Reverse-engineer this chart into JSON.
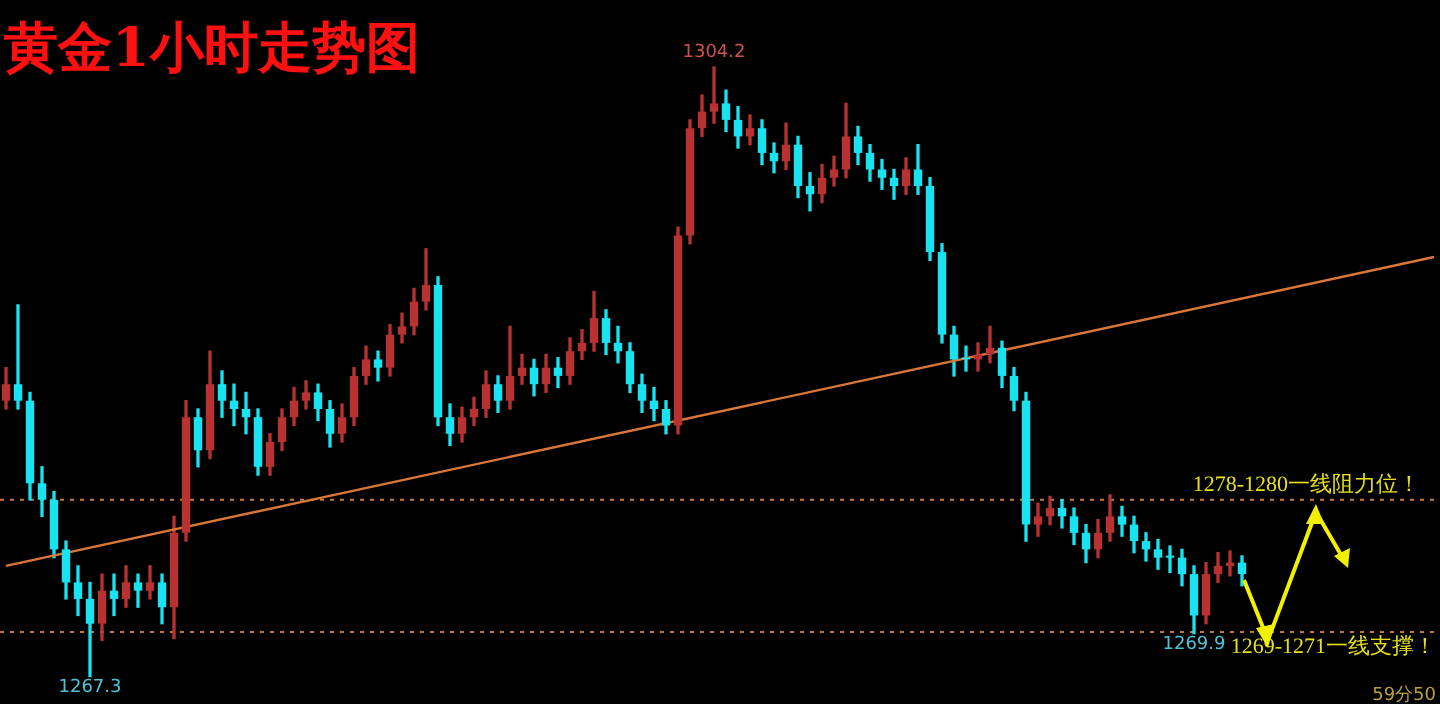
{
  "chart_data": {
    "type": "candlestick",
    "title": "黄金1小时走势图",
    "categories": [
      null,
      null,
      null,
      null,
      null,
      null,
      null,
      null,
      null,
      null,
      null,
      null,
      null,
      null,
      null,
      null,
      null,
      null,
      null,
      null,
      null,
      null,
      null,
      null,
      null,
      null,
      null,
      null,
      null,
      null,
      null,
      null,
      null,
      null,
      null,
      null,
      null,
      null,
      null,
      null,
      null,
      null,
      null,
      null,
      null,
      null,
      null,
      null,
      null,
      null,
      null,
      null,
      null,
      null,
      null,
      null,
      null,
      null,
      null,
      null,
      null,
      null,
      null,
      null,
      null,
      null,
      null,
      null,
      null,
      null,
      null,
      null,
      null,
      null,
      null,
      null,
      null,
      null,
      null,
      null,
      null,
      null,
      null,
      null,
      null,
      null,
      null,
      null,
      null,
      null,
      null,
      null,
      null,
      null,
      null,
      null,
      null,
      null,
      null,
      null,
      null,
      null,
      null,
      null,
      null,
      null,
      null,
      null,
      null,
      null,
      null,
      null,
      null,
      null,
      null,
      null,
      null,
      null,
      null,
      null
    ],
    "ohlc": [
      [
        1284,
        1286,
        1283.5,
        1285
      ],
      [
        1285,
        1289.8,
        1283.5,
        1284
      ],
      [
        1284,
        1284.5,
        1278,
        1279
      ],
      [
        1279,
        1280,
        1277,
        1278
      ],
      [
        1278,
        1278.5,
        1274.5,
        1275
      ],
      [
        1275,
        1275.5,
        1272,
        1273
      ],
      [
        1273,
        1274,
        1271,
        1272
      ],
      [
        1272,
        1273,
        1267.3,
        1270.5
      ],
      [
        1270.5,
        1273.5,
        1269.5,
        1272.5
      ],
      [
        1272.5,
        1273.5,
        1271,
        1272
      ],
      [
        1272,
        1274,
        1271.5,
        1273
      ],
      [
        1273,
        1273.5,
        1271.5,
        1272.5
      ],
      [
        1272.5,
        1274,
        1272,
        1273
      ],
      [
        1273,
        1273.5,
        1270.5,
        1271.5
      ],
      [
        1271.5,
        1277,
        1269.6,
        1276
      ],
      [
        1276,
        1284,
        1275.5,
        1283
      ],
      [
        1283,
        1283.5,
        1280,
        1281
      ],
      [
        1281,
        1287,
        1280.5,
        1285
      ],
      [
        1285,
        1285.8,
        1283,
        1284
      ],
      [
        1284,
        1285,
        1282.5,
        1283.5
      ],
      [
        1283.5,
        1284.5,
        1282,
        1283
      ],
      [
        1283,
        1283.5,
        1279.5,
        1280
      ],
      [
        1280,
        1282,
        1279.5,
        1281.5
      ],
      [
        1281.5,
        1283.5,
        1281,
        1283
      ],
      [
        1283,
        1284.8,
        1282.5,
        1284
      ],
      [
        1284,
        1285.2,
        1283.5,
        1284.5
      ],
      [
        1284.5,
        1285,
        1282.8,
        1283.5
      ],
      [
        1283.5,
        1284,
        1281.2,
        1282
      ],
      [
        1282,
        1283.8,
        1281.5,
        1283
      ],
      [
        1283,
        1286,
        1282.5,
        1285.5
      ],
      [
        1285.5,
        1287.3,
        1285,
        1286.5
      ],
      [
        1286.5,
        1287,
        1285.2,
        1286
      ],
      [
        1286,
        1288.6,
        1285.5,
        1288
      ],
      [
        1288,
        1289.3,
        1287.5,
        1288.5
      ],
      [
        1288.5,
        1290.8,
        1288,
        1290
      ],
      [
        1290,
        1293.2,
        1289.5,
        1291
      ],
      [
        1291,
        1291.5,
        1282.5,
        1283
      ],
      [
        1283,
        1283.8,
        1281.3,
        1282
      ],
      [
        1282,
        1283.6,
        1281.5,
        1283
      ],
      [
        1283,
        1284.2,
        1282.5,
        1283.5
      ],
      [
        1283.5,
        1285.8,
        1283,
        1285
      ],
      [
        1285,
        1285.5,
        1283.3,
        1284
      ],
      [
        1284,
        1288.5,
        1283.5,
        1285.5
      ],
      [
        1285.5,
        1286.8,
        1285,
        1286
      ],
      [
        1286,
        1286.5,
        1284.3,
        1285
      ],
      [
        1285,
        1286.8,
        1284.5,
        1286
      ],
      [
        1286,
        1286.6,
        1284.8,
        1285.5
      ],
      [
        1285.5,
        1287.8,
        1285,
        1287
      ],
      [
        1287,
        1288.3,
        1286.5,
        1287.5
      ],
      [
        1287.5,
        1290.6,
        1287,
        1289
      ],
      [
        1289,
        1289.5,
        1286.8,
        1287.5
      ],
      [
        1287.5,
        1288.5,
        1286.3,
        1287
      ],
      [
        1287,
        1287.5,
        1284.5,
        1285
      ],
      [
        1285,
        1285.6,
        1283.3,
        1284
      ],
      [
        1284,
        1284.8,
        1282.8,
        1283.5
      ],
      [
        1283.5,
        1284,
        1282,
        1282.5
      ],
      [
        1282.5,
        1294.5,
        1282,
        1294
      ],
      [
        1294,
        1301,
        1293.5,
        1300.5
      ],
      [
        1300.5,
        1302.5,
        1300,
        1301.5
      ],
      [
        1301.5,
        1304.2,
        1300.8,
        1302
      ],
      [
        1302,
        1302.8,
        1300.3,
        1301
      ],
      [
        1301,
        1301.8,
        1299.3,
        1300
      ],
      [
        1300,
        1301.3,
        1299.5,
        1300.5
      ],
      [
        1300.5,
        1301,
        1298.3,
        1299
      ],
      [
        1299,
        1299.6,
        1297.8,
        1298.5
      ],
      [
        1298.5,
        1300.8,
        1298,
        1299.5
      ],
      [
        1299.5,
        1300,
        1296.3,
        1297
      ],
      [
        1297,
        1297.8,
        1295.5,
        1296.5
      ],
      [
        1296.5,
        1298.3,
        1296,
        1297.5
      ],
      [
        1297.5,
        1298.8,
        1297,
        1298
      ],
      [
        1298,
        1302,
        1297.5,
        1300
      ],
      [
        1300,
        1300.6,
        1298.3,
        1299
      ],
      [
        1299,
        1299.5,
        1297.3,
        1298
      ],
      [
        1298,
        1298.6,
        1296.8,
        1297.5
      ],
      [
        1297.5,
        1298,
        1296.2,
        1297
      ],
      [
        1297,
        1298.7,
        1296.5,
        1298
      ],
      [
        1298,
        1299.5,
        1296.5,
        1297
      ],
      [
        1297,
        1297.5,
        1292.5,
        1293
      ],
      [
        1293,
        1293.5,
        1287.5,
        1288
      ],
      [
        1288,
        1288.5,
        1285.5,
        1286.5
      ],
      [
        1286.5,
        1287.3,
        1285.8,
        1286.5
      ],
      [
        1286.5,
        1287.5,
        1285.8,
        1286.8
      ],
      [
        1286.8,
        1288.5,
        1286.3,
        1287.2
      ],
      [
        1287.2,
        1287.6,
        1284.8,
        1285.5
      ],
      [
        1285.5,
        1286,
        1283.4,
        1284
      ],
      [
        1284,
        1284.5,
        1275.5,
        1276.5
      ],
      [
        1276.5,
        1277.8,
        1275.8,
        1277
      ],
      [
        1277,
        1278.2,
        1276.5,
        1277.5
      ],
      [
        1277.5,
        1278,
        1276.3,
        1277
      ],
      [
        1277,
        1277.5,
        1275.3,
        1276
      ],
      [
        1276,
        1276.5,
        1274.2,
        1275
      ],
      [
        1275,
        1276.8,
        1274.5,
        1276
      ],
      [
        1276,
        1278.3,
        1275.5,
        1277
      ],
      [
        1277,
        1277.6,
        1275.8,
        1276.5
      ],
      [
        1276.5,
        1277,
        1274.8,
        1275.5
      ],
      [
        1275.5,
        1276,
        1274.3,
        1275
      ],
      [
        1275,
        1275.6,
        1273.8,
        1274.5
      ],
      [
        1274.5,
        1275.2,
        1273.6,
        1274.5
      ],
      [
        1274.5,
        1275,
        1272.8,
        1273.5
      ],
      [
        1273.5,
        1274,
        1269.9,
        1271
      ],
      [
        1271,
        1274.2,
        1270.5,
        1273.5
      ],
      [
        1273.5,
        1274.8,
        1273,
        1274
      ],
      [
        1274,
        1274.9,
        1273.4,
        1274.2
      ],
      [
        1274.2,
        1274.6,
        1272.8,
        1273.5
      ],
      null,
      null,
      null,
      null,
      null,
      null,
      null,
      null,
      null,
      null,
      null,
      null,
      null,
      null,
      null,
      null
    ],
    "colors": [
      "#b83232",
      "#19e3f0",
      "#19e3f0",
      "#19e3f0",
      "#19e3f0",
      "#19e3f0",
      "#19e3f0",
      "#19e3f0",
      "#b83232",
      "#19e3f0",
      "#b83232",
      "#19e3f0",
      "#b83232",
      "#19e3f0",
      "#b83232",
      "#b83232",
      "#19e3f0",
      "#b83232",
      "#19e3f0",
      "#19e3f0",
      "#19e3f0",
      "#19e3f0",
      "#b83232",
      "#b83232",
      "#b83232",
      "#b83232",
      "#19e3f0",
      "#19e3f0",
      "#b83232",
      "#b83232",
      "#b83232",
      "#19e3f0",
      "#b83232",
      "#b83232",
      "#b83232",
      "#b83232",
      "#19e3f0",
      "#19e3f0",
      "#b83232",
      "#b83232",
      "#b83232",
      "#19e3f0",
      "#b83232",
      "#b83232",
      "#19e3f0",
      "#b83232",
      "#19e3f0",
      "#b83232",
      "#b83232",
      "#b83232",
      "#19e3f0",
      "#19e3f0",
      "#19e3f0",
      "#19e3f0",
      "#19e3f0",
      "#19e3f0",
      "#b83232",
      "#b83232",
      "#b83232",
      "#b83232",
      "#19e3f0",
      "#19e3f0",
      "#b83232",
      "#19e3f0",
      "#19e3f0",
      "#b83232",
      "#19e3f0",
      "#19e3f0",
      "#b83232",
      "#b83232",
      "#b83232",
      "#19e3f0",
      "#19e3f0",
      "#19e3f0",
      "#19e3f0",
      "#b83232",
      "#19e3f0",
      "#19e3f0",
      "#19e3f0",
      "#19e3f0",
      "#19e3f0",
      "#b83232",
      "#b83232",
      "#19e3f0",
      "#19e3f0",
      "#19e3f0",
      "#b83232",
      "#b83232",
      "#19e3f0",
      "#19e3f0",
      "#19e3f0",
      "#b83232",
      "#b83232",
      "#19e3f0",
      "#19e3f0",
      "#19e3f0",
      "#19e3f0",
      "#19e3f0",
      "#19e3f0",
      "#19e3f0",
      "#b83232",
      "#b83232",
      "#b83232",
      "#19e3f0",
      null,
      null,
      null,
      null,
      null,
      null,
      null,
      null,
      null,
      null,
      null,
      null,
      null,
      null,
      null,
      null
    ],
    "series": [
      {
        "type": "line",
        "color": "#d9773a",
        "values": [
          1274.0,
          null,
          null,
          null,
          null,
          null,
          null,
          null,
          null,
          null,
          null,
          null,
          null,
          null,
          null,
          null,
          null,
          null,
          null,
          null,
          null,
          null,
          null,
          null,
          null,
          null,
          null,
          null,
          null,
          null,
          null,
          null,
          null,
          null,
          null,
          null,
          null,
          null,
          null,
          null,
          null,
          null,
          null,
          null,
          null,
          null,
          null,
          null,
          null,
          null,
          null,
          null,
          null,
          null,
          null,
          null,
          null,
          null,
          null,
          null,
          null,
          null,
          null,
          null,
          null,
          null,
          null,
          null,
          null,
          null,
          null,
          null,
          null,
          null,
          null,
          null,
          null,
          null,
          null,
          null,
          null,
          null,
          null,
          null,
          null,
          null,
          null,
          null,
          null,
          null,
          null,
          null,
          null,
          null,
          null,
          null,
          null,
          null,
          null,
          null,
          null,
          null,
          null,
          null,
          null,
          null,
          null,
          null,
          null,
          null,
          null,
          null,
          null,
          null,
          null,
          null,
          null,
          null,
          null,
          1292.7
        ]
      }
    ],
    "ref_lines": [
      {
        "axis": "y",
        "value": 1278,
        "label": "1278-1280一线阻力位！",
        "color": "#c8783c",
        "line_style": "dotted"
      },
      {
        "axis": "y",
        "value": 1270,
        "label": "1269-1271一线支撑！",
        "color": "#c8783c",
        "line_style": "dotted"
      }
    ],
    "annotations": [
      {
        "text": "1304.2",
        "y": 1304.2
      },
      {
        "text": "1267.3",
        "y": 1267.3
      },
      {
        "text": "1269.9",
        "y": 1269.9
      },
      "59分50"
    ],
    "legend": false
  }
}
